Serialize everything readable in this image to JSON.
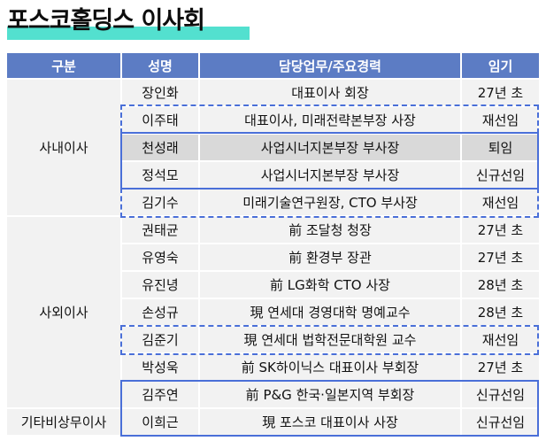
{
  "title": "포스코홀딩스 이사회",
  "headers": {
    "category": "구분",
    "name": "성명",
    "role": "담당업무/주요경력",
    "term": "임기"
  },
  "groups": {
    "inside": "사내이사",
    "outside": "사외이사",
    "nonexec": "기타비상무이사"
  },
  "rows": [
    {
      "name": "장인화",
      "role": "대표이사 회장",
      "term": "27년 초"
    },
    {
      "name": "이주태",
      "role": "대표이사, 미래전략본부장 사장",
      "term": "재선임"
    },
    {
      "name": "천성래",
      "role": "사업시너지본부장 부사장",
      "term": "퇴임"
    },
    {
      "name": "정석모",
      "role": "사업시너지본부장 부사장",
      "term": "신규선임"
    },
    {
      "name": "김기수",
      "role": "미래기술연구원장, CTO 부사장",
      "term": "재선임"
    },
    {
      "name": "권태균",
      "role": "前 조달청 청장",
      "term": "27년 초"
    },
    {
      "name": "유영숙",
      "role": "前 환경부 장관",
      "term": "27년 초"
    },
    {
      "name": "유진녕",
      "role": "前 LG화학 CTO 사장",
      "term": "28년 초"
    },
    {
      "name": "손성규",
      "role": "現 연세대 경영대학 명예교수",
      "term": "28년 초"
    },
    {
      "name": "김준기",
      "role": "現 연세대 법학전문대학원 교수",
      "term": "재선임"
    },
    {
      "name": "박성욱",
      "role": "前 SK하이닉스 대표이사 부회장",
      "term": "27년 초"
    },
    {
      "name": "김주연",
      "role": "前 P&G 한국·일본지역 부회장",
      "term": "신규선임"
    },
    {
      "name": "이희근",
      "role": "現 포스코 대표이사 사장",
      "term": "신규선임"
    }
  ],
  "colors": {
    "header_bg": "#5c7cc4",
    "accent_border": "#4a6fd8",
    "title_highlight": "#53e0cf",
    "retired_row": "#d9d9d9"
  }
}
